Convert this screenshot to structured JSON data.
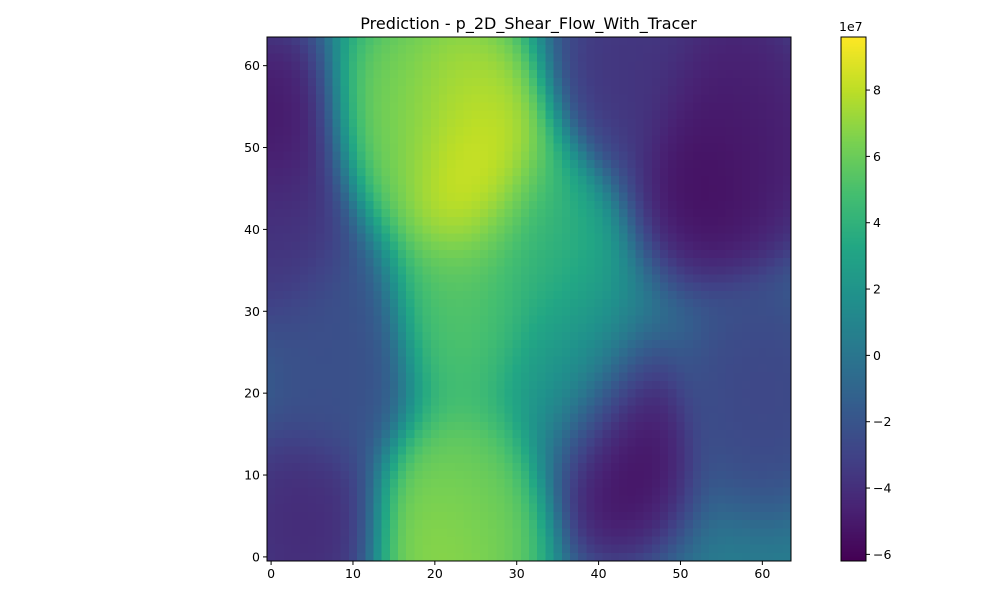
{
  "chart_data": {
    "type": "heatmap",
    "title": "Prediction - p_2D_Shear_Flow_With_Tracer",
    "xlabel": "",
    "ylabel": "",
    "grid": false,
    "colormap": "viridis",
    "grid_size": 64,
    "xlim": [
      -0.5,
      63.5
    ],
    "ylim": [
      -0.5,
      63.5
    ],
    "x_ticks": [
      "0",
      "10",
      "20",
      "30",
      "40",
      "50",
      "60"
    ],
    "y_ticks": [
      "0",
      "10",
      "20",
      "30",
      "40",
      "50",
      "60"
    ],
    "colorbar": {
      "range": [
        -6.2,
        9.6
      ],
      "scale_label": "1e7",
      "ticks": [
        "−6",
        "−4",
        "−2",
        "0",
        "2",
        "4",
        "6",
        "8"
      ]
    },
    "field_features": [
      {
        "x": 25,
        "y": 46,
        "value": 9.5
      },
      {
        "x": 23,
        "y": 55,
        "value": 8.0
      },
      {
        "x": 16,
        "y": 54,
        "value": 6.5
      },
      {
        "x": 24,
        "y": 30,
        "value": 5.5
      },
      {
        "x": 22,
        "y": 2,
        "value": 7.5
      },
      {
        "x": 25,
        "y": 7,
        "value": 6.0
      },
      {
        "x": 32,
        "y": 38,
        "value": 4.0
      },
      {
        "x": 36,
        "y": 22,
        "value": 2.5
      },
      {
        "x": 54,
        "y": 47,
        "value": -6.0
      },
      {
        "x": 60,
        "y": 50,
        "value": -5.0
      },
      {
        "x": 56,
        "y": 57,
        "value": -5.0
      },
      {
        "x": 42,
        "y": 13,
        "value": -6.0
      },
      {
        "x": 0,
        "y": 52,
        "value": -5.5
      },
      {
        "x": 1,
        "y": 40,
        "value": -4.0
      },
      {
        "x": 4,
        "y": 4,
        "value": -4.5
      },
      {
        "x": 44,
        "y": 60,
        "value": -4.0
      },
      {
        "x": 60,
        "y": 20,
        "value": -3.0
      },
      {
        "x": 8,
        "y": 24,
        "value": -2.5
      }
    ],
    "background_value": 0.5
  }
}
